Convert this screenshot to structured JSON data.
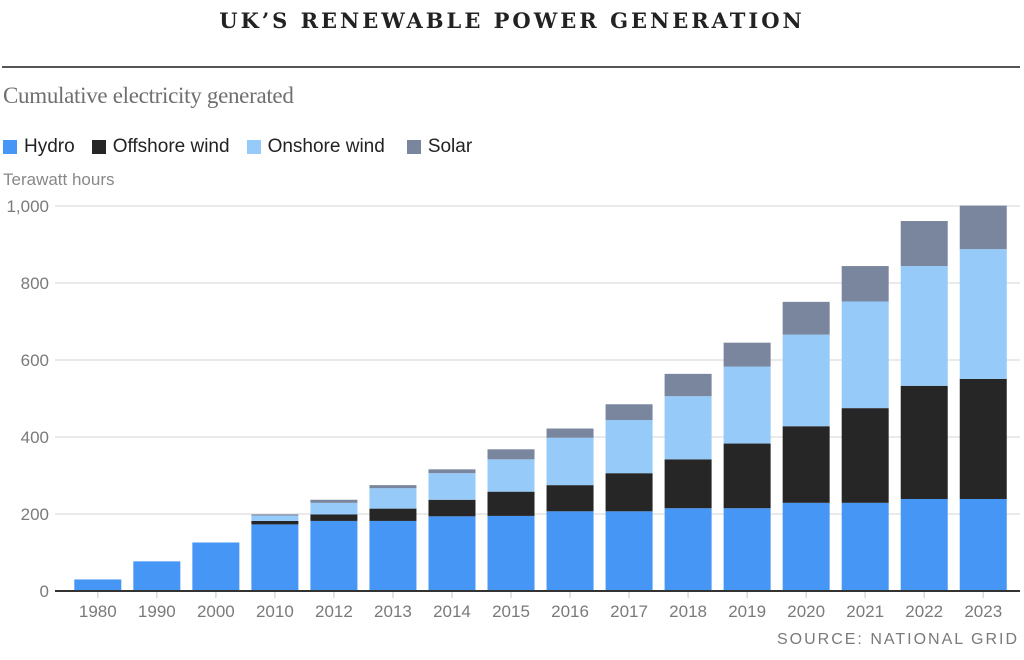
{
  "title": "UK’S RENEWABLE POWER GENERATION",
  "subtitle": "Cumulative electricity generated",
  "source": "SOURCE: NATIONAL GRID",
  "legend": [
    {
      "label": "Hydro",
      "color": "#4596f5"
    },
    {
      "label": "Offshore wind",
      "color": "#262626"
    },
    {
      "label": "Onshore wind",
      "color": "#95caf9"
    },
    {
      "label": "Solar",
      "color": "#79869d"
    }
  ],
  "chart_data": {
    "type": "bar",
    "stacked": true,
    "title": "UK’S RENEWABLE POWER GENERATION",
    "subtitle": "Cumulative electricity generated",
    "ylabel": "Terawatt hours",
    "xlabel": "",
    "ylim": [
      0,
      1000
    ],
    "yticks": [
      0,
      200,
      400,
      600,
      800,
      1000
    ],
    "ytick_labels": [
      "0",
      "200",
      "400",
      "600",
      "800",
      "1,000"
    ],
    "grid": true,
    "legend_position": "top-left",
    "categories": [
      "1980",
      "1990",
      "2000",
      "2010",
      "2012",
      "2013",
      "2014",
      "2015",
      "2016",
      "2017",
      "2018",
      "2019",
      "2020",
      "2021",
      "2022",
      "2023"
    ],
    "series": [
      {
        "name": "Hydro",
        "color": "#4596f5",
        "values": [
          30,
          77,
          126,
          173,
          182,
          182,
          194,
          195,
          207,
          207,
          215,
          215,
          229,
          229,
          239,
          239
        ]
      },
      {
        "name": "Offshore wind",
        "color": "#262626",
        "values": [
          0,
          0,
          0,
          9,
          17,
          32,
          43,
          63,
          68,
          99,
          127,
          168,
          199,
          246,
          294,
          312
        ]
      },
      {
        "name": "Onshore wind",
        "color": "#95caf9",
        "values": [
          0,
          0,
          0,
          14,
          30,
          53,
          69,
          84,
          123,
          138,
          164,
          200,
          238,
          277,
          311,
          337
        ]
      },
      {
        "name": "Solar",
        "color": "#79869d",
        "values": [
          0,
          0,
          0,
          3,
          8,
          8,
          10,
          26,
          24,
          41,
          58,
          62,
          85,
          92,
          117,
          113
        ]
      }
    ]
  }
}
